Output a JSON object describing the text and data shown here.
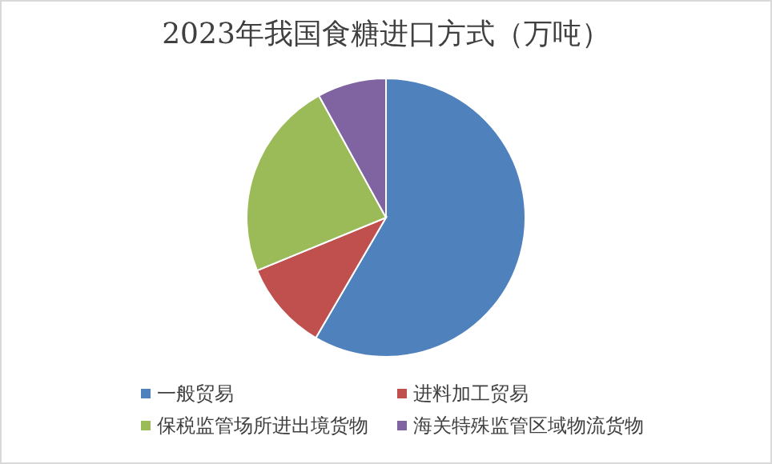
{
  "chart_data": {
    "type": "pie",
    "title": "2023年我国食糖进口方式（万吨）",
    "categories": [
      "一般贸易",
      "进料加工贸易",
      "保税监管场所进出境货物",
      "海关特殊监管区域物流货物"
    ],
    "values": [
      58.4,
      10.4,
      23.2,
      8.0
    ],
    "colors": [
      "#4f81bd",
      "#c0504d",
      "#9bbb59",
      "#8064a2"
    ],
    "legend": "bottom"
  }
}
